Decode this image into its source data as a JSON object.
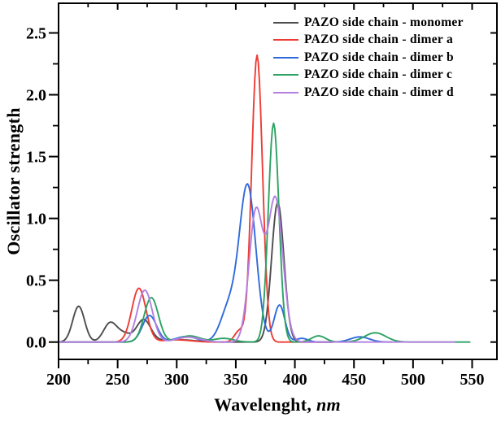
{
  "figure": {
    "background": "#ffffff",
    "axis_color": "#000000",
    "tick_label_color": "#000000"
  },
  "chart_data": {
    "type": "line",
    "title": "",
    "xlabel": "Wavelenght, nm",
    "xlabel_main": "Wavelenght, ",
    "xlabel_unit_italic": "nm",
    "ylabel": "Oscillator strength",
    "xlim": [
      200,
      571
    ],
    "ylim": [
      -0.14,
      2.74
    ],
    "x_ticks_major": [
      200,
      250,
      300,
      350,
      400,
      450,
      500,
      550
    ],
    "x_ticks_minor": [
      225,
      275,
      325,
      375,
      425,
      475,
      525
    ],
    "y_ticks_major": [
      0.0,
      0.5,
      1.0,
      1.5,
      2.0,
      2.5
    ],
    "y_tick_labels": [
      "0.0",
      "0.5",
      "1.0",
      "1.5",
      "2.0",
      "2.5"
    ],
    "y_ticks_minor": [
      0.25,
      0.75,
      1.25,
      1.75,
      2.25
    ],
    "grid": false,
    "legend_position": "top-right-inside",
    "curve_model": "sum_of_gaussians",
    "series": [
      {
        "name": "PAZO side chain - monomer",
        "color": "#4d4d4d",
        "x_range": [
          200,
          432
        ],
        "peaks": [
          {
            "center": 217.0,
            "height": 0.29,
            "sigma": 5.0
          },
          {
            "center": 243.5,
            "height": 0.15,
            "sigma": 5.5
          },
          {
            "center": 255.0,
            "height": 0.065,
            "sigma": 6.0
          },
          {
            "center": 272.0,
            "height": 0.18,
            "sigma": 6.0
          },
          {
            "center": 300.0,
            "height": 0.02,
            "sigma": 14.0
          },
          {
            "center": 385.5,
            "height": 1.13,
            "sigma": 5.2
          }
        ]
      },
      {
        "name": "PAZO side chain - dimer a",
        "color": "#ee3c35",
        "x_range": [
          200,
          432
        ],
        "peaks": [
          {
            "center": 268.0,
            "height": 0.435,
            "sigma": 6.0
          },
          {
            "center": 300.0,
            "height": 0.018,
            "sigma": 12.0
          },
          {
            "center": 353.0,
            "height": 0.09,
            "sigma": 4.0
          },
          {
            "center": 368.0,
            "height": 2.32,
            "sigma": 4.6
          }
        ]
      },
      {
        "name": "PAZO side chain - dimer b",
        "color": "#2f6bdb",
        "x_range": [
          200,
          482
        ],
        "peaks": [
          {
            "center": 277.0,
            "height": 0.215,
            "sigma": 6.0
          },
          {
            "center": 308.0,
            "height": 0.045,
            "sigma": 9.0
          },
          {
            "center": 344.0,
            "height": 0.27,
            "sigma": 7.0
          },
          {
            "center": 360.0,
            "height": 1.26,
            "sigma": 7.0
          },
          {
            "center": 387.0,
            "height": 0.3,
            "sigma": 4.5
          },
          {
            "center": 406.0,
            "height": 0.03,
            "sigma": 5.0
          },
          {
            "center": 455.0,
            "height": 0.042,
            "sigma": 8.0
          }
        ]
      },
      {
        "name": "PAZO side chain - dimer c",
        "color": "#2da263",
        "x_range": [
          200,
          548
        ],
        "peaks": [
          {
            "center": 278.5,
            "height": 0.36,
            "sigma": 6.0
          },
          {
            "center": 311.0,
            "height": 0.05,
            "sigma": 9.0
          },
          {
            "center": 340.0,
            "height": 0.03,
            "sigma": 8.0
          },
          {
            "center": 382.0,
            "height": 1.77,
            "sigma": 4.5
          },
          {
            "center": 420.0,
            "height": 0.05,
            "sigma": 6.0
          },
          {
            "center": 468.0,
            "height": 0.075,
            "sigma": 9.0
          }
        ]
      },
      {
        "name": "PAZO side chain - dimer d",
        "color": "#b37fe0",
        "x_range": [
          200,
          535
        ],
        "peaks": [
          {
            "center": 273.0,
            "height": 0.42,
            "sigma": 6.3
          },
          {
            "center": 310.0,
            "height": 0.04,
            "sigma": 10.0
          },
          {
            "center": 367.0,
            "height": 1.05,
            "sigma": 5.8
          },
          {
            "center": 383.5,
            "height": 1.16,
            "sigma": 6.3
          }
        ]
      }
    ]
  }
}
